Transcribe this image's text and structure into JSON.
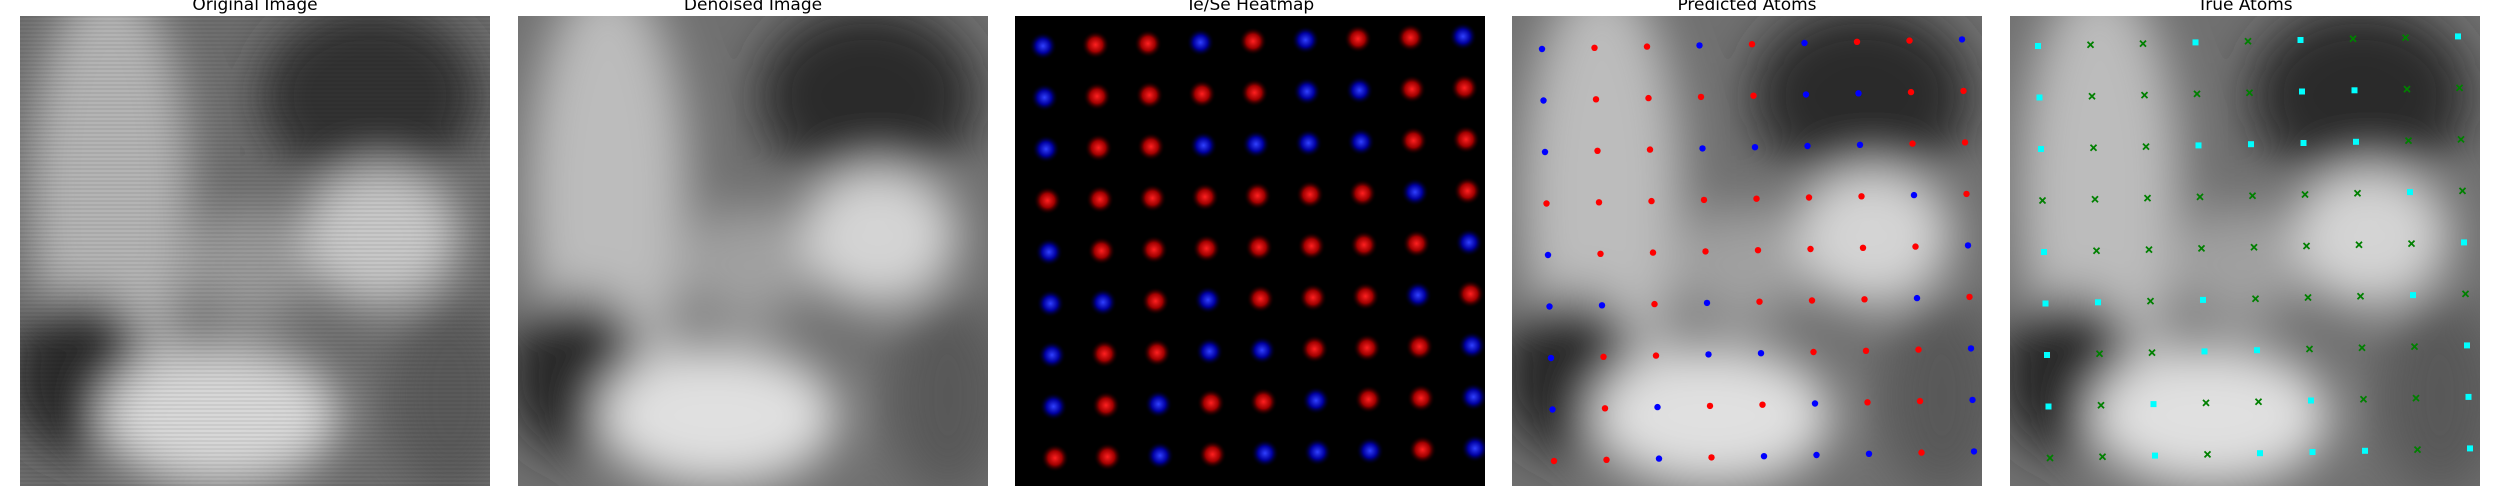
{
  "panels": [
    {
      "title": "Original Image"
    },
    {
      "title": "Denoised Image"
    },
    {
      "title": "Te/Se Heatmap"
    },
    {
      "title": "Predicted Atoms"
    },
    {
      "title": "True Atoms"
    }
  ],
  "colors": {
    "te_marker": "#ff0000",
    "se_marker": "#0000ff",
    "true_te_marker": "#008000",
    "true_se_marker": "#00ffff",
    "heatmap_background": "#000000"
  },
  "lattice": {
    "rows": 9,
    "cols": 9,
    "species": [
      "SRRSRSRRS",
      "SRRRRSSRR",
      "SRRSSSSRR",
      "RRRRRRRSR",
      "SRRRRRRRS",
      "SSRSRRRSR",
      "SRRSSRRRS",
      "SRSRRSRRS",
      "RRSRSSSRS"
    ]
  }
}
